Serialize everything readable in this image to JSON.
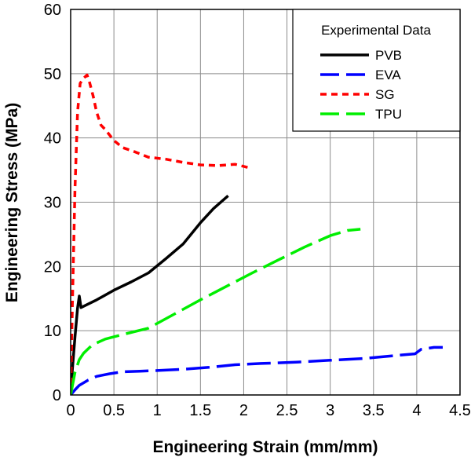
{
  "chart_data": {
    "type": "line",
    "title": "",
    "xlabel": "Engineering Strain (mm/mm)",
    "ylabel": "Engineering Stress (MPa)",
    "xlim": [
      0,
      4.5
    ],
    "ylim": [
      0,
      60
    ],
    "xticks": [
      0,
      0.5,
      1,
      1.5,
      2,
      2.5,
      3,
      3.5,
      4,
      4.5
    ],
    "yticks": [
      0,
      10,
      20,
      30,
      40,
      50,
      60
    ],
    "xtick_labels": [
      "0",
      "0.5",
      "1",
      "1.5",
      "2",
      "2.5",
      "3",
      "3.5",
      "4",
      "4.5"
    ],
    "ytick_labels": [
      "0",
      "10",
      "20",
      "30",
      "40",
      "50",
      "60"
    ],
    "grid": true,
    "legend": {
      "title": "Experimental Data",
      "placement": "top-right"
    },
    "series": [
      {
        "name": "PVB",
        "color": "#000000",
        "dash": "solid",
        "x": [
          0,
          0.02,
          0.05,
          0.08,
          0.1,
          0.12,
          0.15,
          0.3,
          0.5,
          0.7,
          0.9,
          1.1,
          1.3,
          1.5,
          1.65,
          1.82
        ],
        "y": [
          0,
          4,
          9,
          13.5,
          15.4,
          13.6,
          13.8,
          14.8,
          16.3,
          17.6,
          19,
          21.2,
          23.5,
          26.8,
          29,
          31
        ]
      },
      {
        "name": "EVA",
        "color": "#0000ff",
        "dash": "long-dash",
        "x": [
          0,
          0.05,
          0.1,
          0.2,
          0.3,
          0.45,
          0.6,
          0.8,
          1.0,
          1.3,
          1.6,
          1.9,
          2.2,
          2.6,
          3.0,
          3.4,
          3.8,
          3.98,
          4.05,
          4.2,
          4.3
        ],
        "y": [
          0,
          0.8,
          1.5,
          2.3,
          2.9,
          3.3,
          3.6,
          3.7,
          3.8,
          4.0,
          4.3,
          4.7,
          4.9,
          5.1,
          5.4,
          5.7,
          6.2,
          6.4,
          7.1,
          7.4,
          7.4
        ]
      },
      {
        "name": "SG",
        "color": "#ff0000",
        "dash": "short-dash",
        "x": [
          0,
          0.02,
          0.05,
          0.08,
          0.11,
          0.15,
          0.19,
          0.22,
          0.26,
          0.3,
          0.35,
          0.4,
          0.5,
          0.6,
          0.75,
          0.9,
          1.1,
          1.3,
          1.5,
          1.7,
          1.9,
          2.05
        ],
        "y": [
          0,
          14,
          32,
          44,
          48.5,
          49.3,
          49.8,
          48.6,
          46.5,
          44,
          42,
          41.3,
          39.6,
          38.5,
          37.8,
          37,
          36.7,
          36.2,
          35.8,
          35.7,
          35.9,
          35.4
        ]
      },
      {
        "name": "TPU",
        "color": "#00ee00",
        "dash": "long-dash",
        "x": [
          0,
          0.05,
          0.1,
          0.15,
          0.25,
          0.4,
          0.6,
          0.9,
          1.2,
          1.5,
          1.8,
          2.1,
          2.4,
          2.7,
          3.0,
          3.2,
          3.35
        ],
        "y": [
          0,
          3.5,
          5.5,
          6.5,
          7.8,
          8.7,
          9.4,
          10.4,
          12.6,
          14.8,
          16.9,
          19,
          21,
          23,
          24.8,
          25.6,
          25.8
        ]
      }
    ]
  }
}
